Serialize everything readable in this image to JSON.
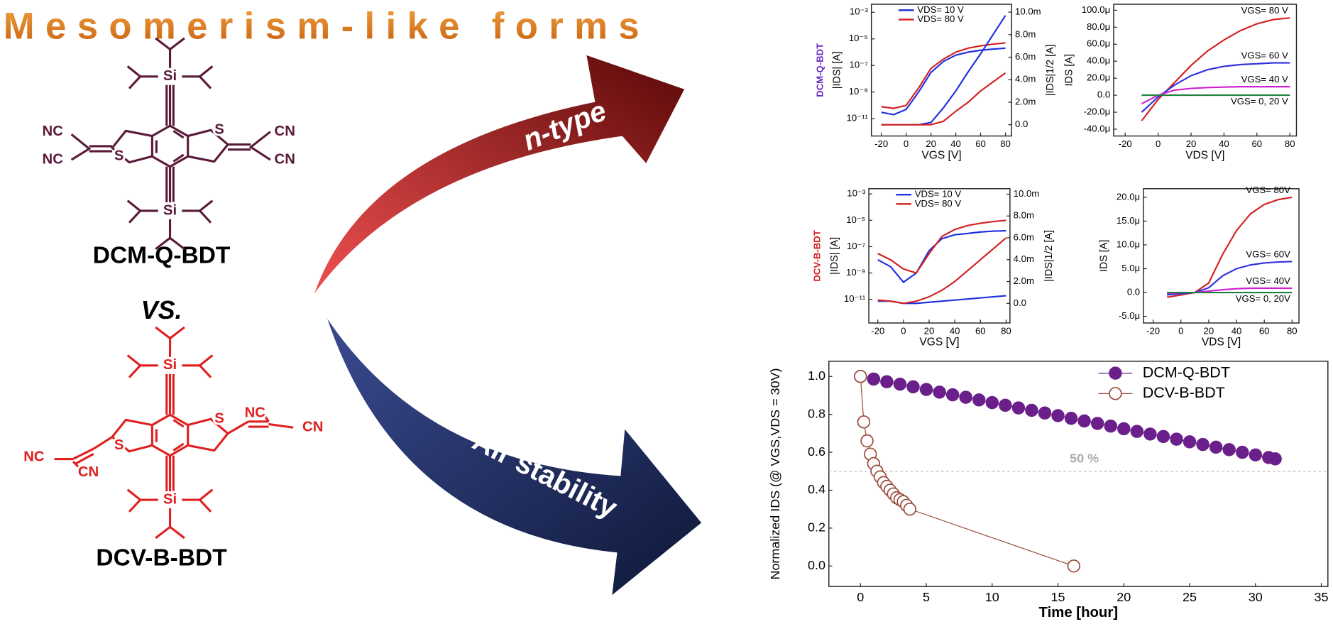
{
  "title": "Mesomerism-like forms",
  "molecules": [
    {
      "name": "DCM-Q-BDT",
      "atoms": [
        "Si",
        "NC",
        "NC",
        "S",
        "S",
        "CN",
        "CN",
        "Si"
      ]
    },
    {
      "name": "DCV-B-BDT",
      "atoms": [
        "Si",
        "NC",
        "CN",
        "S",
        "S",
        "NC",
        "CN",
        "Si"
      ]
    }
  ],
  "comparison": "VS.",
  "arrows": [
    "n-type",
    "Air stability"
  ],
  "chart_data": [
    {
      "type": "line",
      "side_label": "DCM-Q-BDT",
      "side_color": "#6a2bc4",
      "xlabel": "VGS [V]",
      "ylabel": "|IDS| [A]",
      "y2label": "|IDS|1/2 [A]",
      "y_scale": "log",
      "legend": "upper-left",
      "x": [
        -20,
        -10,
        0,
        10,
        20,
        30,
        40,
        50,
        60,
        70,
        80
      ],
      "xlim": [
        -28,
        85
      ],
      "xticks": [
        -20,
        0,
        20,
        40,
        60,
        80
      ],
      "ylim": [
        5e-13,
        0.004
      ],
      "yticks": [
        {
          "value": 1e-11,
          "label": "10⁻¹¹"
        },
        {
          "value": 1e-09,
          "label": "10⁻⁹"
        },
        {
          "value": 1e-07,
          "label": "10⁻⁷"
        },
        {
          "value": 1e-05,
          "label": "10⁻⁵"
        },
        {
          "value": 0.001,
          "label": "10⁻³"
        }
      ],
      "y2lim": [
        -0.001,
        0.0107
      ],
      "y2ticks": [
        {
          "value": 0,
          "label": "0.0"
        },
        {
          "value": 0.002,
          "label": "2.0m"
        },
        {
          "value": 0.004,
          "label": "4.0m"
        },
        {
          "value": 0.006,
          "label": "6.0m"
        },
        {
          "value": 0.008,
          "label": "8.0m"
        },
        {
          "value": 0.01,
          "label": "10.0m"
        }
      ],
      "series": [
        {
          "name": "VDS= 10 V",
          "color": "#1f2fe0",
          "values": [
            3e-11,
            2e-11,
            5e-11,
            1e-09,
            3e-08,
            2e-07,
            6e-07,
            1e-06,
            1.4e-06,
            1.7e-06,
            2e-06
          ]
        },
        {
          "name": "VDS= 80 V",
          "color": "#d42020",
          "values": [
            8e-11,
            6e-11,
            1e-10,
            2e-09,
            6e-08,
            3e-07,
            1e-06,
            2e-06,
            3e-06,
            4e-06,
            5e-06
          ]
        },
        {
          "color": "#1f2fe0",
          "axis": "y2",
          "values": [
            0,
            0,
            0,
            0,
            0.0002,
            0.0015,
            0.003,
            0.0047,
            0.0063,
            0.008,
            0.0097
          ]
        },
        {
          "color": "#d42020",
          "axis": "y2",
          "values": [
            0,
            0,
            0,
            0,
            0,
            0.0003,
            0.0012,
            0.002,
            0.003,
            0.0038,
            0.0046
          ]
        }
      ]
    },
    {
      "type": "line",
      "xlabel": "VDS [V]",
      "ylabel": "IDS [A]",
      "legend": "inline",
      "x": [
        -10,
        0,
        10,
        20,
        30,
        40,
        50,
        60,
        70,
        80
      ],
      "xlim": [
        -27,
        84
      ],
      "xticks": [
        -20,
        0,
        20,
        40,
        60,
        80
      ],
      "ylim": [
        -4.8e-05,
        0.000107
      ],
      "yticks": [
        {
          "value": -4e-05,
          "label": "-40.0μ"
        },
        {
          "value": -2e-05,
          "label": "-20.0μ"
        },
        {
          "value": 0,
          "label": "0.0"
        },
        {
          "value": 2e-05,
          "label": "20.0μ"
        },
        {
          "value": 4e-05,
          "label": "40.0μ"
        },
        {
          "value": 6e-05,
          "label": "60.0μ"
        },
        {
          "value": 8e-05,
          "label": "80.0μ"
        },
        {
          "value": 0.0001,
          "label": "100.0μ"
        }
      ],
      "series": [
        {
          "name": "VGS= 80 V",
          "color": "#d42020",
          "values": [
            -3e-05,
            -5e-06,
            1.5e-05,
            3.5e-05,
            5.2e-05,
            6.5e-05,
            7.6e-05,
            8.4e-05,
            8.9e-05,
            9.1e-05
          ]
        },
        {
          "name": "VGS= 60 V",
          "color": "#3030e0",
          "values": [
            -2e-05,
            -2e-06,
            1.2e-05,
            2.3e-05,
            3e-05,
            3.4e-05,
            3.6e-05,
            3.7e-05,
            3.8e-05,
            3.8e-05
          ]
        },
        {
          "name": "VGS= 40 V",
          "color": "#d020d0",
          "values": [
            -1e-05,
            0,
            6e-06,
            8e-06,
            9e-06,
            9.5e-06,
            1e-05,
            1e-05,
            1e-05,
            1e-05
          ]
        },
        {
          "name": "VGS= 0, 20 V",
          "color": "#208040",
          "values": [
            0,
            0,
            0,
            0,
            0,
            0,
            0,
            0,
            0,
            0
          ]
        }
      ]
    },
    {
      "type": "line",
      "side_label": "DCV-B-BDT",
      "side_color": "#d42020",
      "xlabel": "VGS [V]",
      "ylabel": "|IDS| [A]",
      "y2label": "|IDS|1/2 [A]",
      "y_scale": "log",
      "legend": "upper-left",
      "x": [
        -20,
        -10,
        0,
        10,
        20,
        30,
        40,
        50,
        60,
        70,
        80
      ],
      "xlim": [
        -27,
        83
      ],
      "xticks": [
        -20,
        0,
        20,
        40,
        60,
        80
      ],
      "ylim": [
        1.6e-13,
        0.0025
      ],
      "yticks": [
        {
          "value": 1e-11,
          "label": "10⁻¹¹"
        },
        {
          "value": 1e-09,
          "label": "10⁻⁹"
        },
        {
          "value": 1e-07,
          "label": "10⁻⁷"
        },
        {
          "value": 1e-05,
          "label": "10⁻⁵"
        },
        {
          "value": 0.001,
          "label": "10⁻³"
        }
      ],
      "y2lim": [
        -0.0018,
        0.0105
      ],
      "y2ticks": [
        {
          "value": 0,
          "label": "0.0"
        },
        {
          "value": 0.002,
          "label": "2.0m"
        },
        {
          "value": 0.004,
          "label": "4.0m"
        },
        {
          "value": 0.006,
          "label": "6.0m"
        },
        {
          "value": 0.008,
          "label": "8.0m"
        },
        {
          "value": 0.01,
          "label": "10.0m"
        }
      ],
      "series": [
        {
          "name": "VDS= 10 V",
          "color": "#1f2fe0",
          "values": [
            1e-08,
            3e-09,
            2e-10,
            1e-09,
            5e-08,
            4e-07,
            8e-07,
            1e-06,
            1.3e-06,
            1.5e-06,
            1.6e-06
          ]
        },
        {
          "name": "VDS= 80 V",
          "color": "#d42020",
          "values": [
            3e-08,
            1e-08,
            2e-09,
            1e-09,
            3e-08,
            6e-07,
            2e-06,
            4e-06,
            6e-06,
            8e-06,
            1e-05
          ]
        },
        {
          "color": "#1f2fe0",
          "axis": "y2",
          "values": [
            0.0002,
            0.0002,
            0,
            0,
            0.0001,
            0.0002,
            0.0003,
            0.0004,
            0.0005,
            0.0006,
            0.0007
          ]
        },
        {
          "color": "#d42020",
          "axis": "y2",
          "values": [
            0.0003,
            0.0002,
            0,
            0.0002,
            0.0006,
            0.0012,
            0.002,
            0.003,
            0.004,
            0.005,
            0.006
          ]
        }
      ]
    },
    {
      "type": "line",
      "xlabel": "VDS [V]",
      "ylabel": "IDS [A]",
      "legend": "inline",
      "x": [
        -10,
        0,
        10,
        20,
        30,
        40,
        50,
        60,
        70,
        80
      ],
      "xlim": [
        -27,
        85
      ],
      "xticks": [
        -20,
        0,
        20,
        40,
        60,
        80
      ],
      "ylim": [
        -6.4e-06,
        2.18e-05
      ],
      "yticks": [
        {
          "value": -5e-06,
          "label": "-5.0μ"
        },
        {
          "value": 0,
          "label": "0.0"
        },
        {
          "value": 5e-06,
          "label": "5.0μ"
        },
        {
          "value": 1e-05,
          "label": "10.0μ"
        },
        {
          "value": 1.5e-05,
          "label": "15.0μ"
        },
        {
          "value": 2e-05,
          "label": "20.0μ"
        }
      ],
      "series": [
        {
          "name": "VGS= 80V",
          "color": "#d42020",
          "values": [
            -1e-06,
            -5e-07,
            0,
            2e-06,
            8e-06,
            1.3e-05,
            1.65e-05,
            1.85e-05,
            1.95e-05,
            2e-05
          ]
        },
        {
          "name": "VGS= 60V",
          "color": "#3030e0",
          "values": [
            -5e-07,
            -2e-07,
            0,
            1e-06,
            3.5e-06,
            5e-06,
            5.8e-06,
            6.2e-06,
            6.4e-06,
            6.5e-06
          ]
        },
        {
          "name": "VGS= 40V",
          "color": "#d020d0",
          "values": [
            -2e-07,
            0,
            0,
            3e-07,
            6e-07,
            8e-07,
            9e-07,
            9e-07,
            9e-07,
            9e-07
          ]
        },
        {
          "name": "VGS= 0, 20V",
          "color": "#208040",
          "values": [
            0,
            0,
            0,
            0,
            0,
            0,
            0,
            0,
            0,
            0
          ]
        }
      ]
    },
    {
      "type": "scatter",
      "xlabel": "Time [hour]",
      "ylabel": "Normalized IDS (@ VGS,VDS = 30V)",
      "legend": "upper-right",
      "xlim": [
        -2.4,
        35.5
      ],
      "xticks": [
        0,
        5,
        10,
        15,
        20,
        25,
        30,
        35
      ],
      "ylim": [
        -0.108,
        1.08
      ],
      "yticks": [
        {
          "value": 0,
          "label": "0.0"
        },
        {
          "value": 0.2,
          "label": "0.2"
        },
        {
          "value": 0.4,
          "label": "0.4"
        },
        {
          "value": 0.6,
          "label": "0.6"
        },
        {
          "value": 0.8,
          "label": "0.8"
        },
        {
          "value": 1,
          "label": "1.0"
        }
      ],
      "reference_line": {
        "value": 0.5,
        "label": "50 %"
      },
      "series": [
        {
          "name": "DCM-Q-BDT",
          "color": "#6a1f8a",
          "marker": "filled-circle",
          "x": [
            0,
            1,
            2,
            3,
            4,
            5,
            6,
            7,
            8,
            9,
            10,
            11,
            12,
            13,
            14,
            15,
            16,
            17,
            18,
            19,
            20,
            21,
            22,
            23,
            24,
            25,
            26,
            27,
            28,
            29,
            30,
            31,
            31.5
          ],
          "values": [
            1.0,
            0.986,
            0.972,
            0.959,
            0.945,
            0.931,
            0.917,
            0.903,
            0.89,
            0.876,
            0.862,
            0.848,
            0.834,
            0.821,
            0.807,
            0.793,
            0.779,
            0.765,
            0.752,
            0.738,
            0.724,
            0.71,
            0.696,
            0.683,
            0.669,
            0.655,
            0.641,
            0.627,
            0.614,
            0.6,
            0.586,
            0.572,
            0.565
          ]
        },
        {
          "name": "DCV-B-BDT",
          "color": "#9a4a3a",
          "marker": "open-circle",
          "x": [
            0,
            0.25,
            0.5,
            0.75,
            1,
            1.25,
            1.5,
            1.75,
            2,
            2.25,
            2.5,
            2.75,
            3,
            3.25,
            3.5,
            3.75,
            16.2
          ],
          "values": [
            1.0,
            0.76,
            0.66,
            0.59,
            0.54,
            0.5,
            0.47,
            0.44,
            0.42,
            0.4,
            0.38,
            0.36,
            0.35,
            0.34,
            0.32,
            0.3,
            0.0
          ]
        }
      ]
    }
  ]
}
